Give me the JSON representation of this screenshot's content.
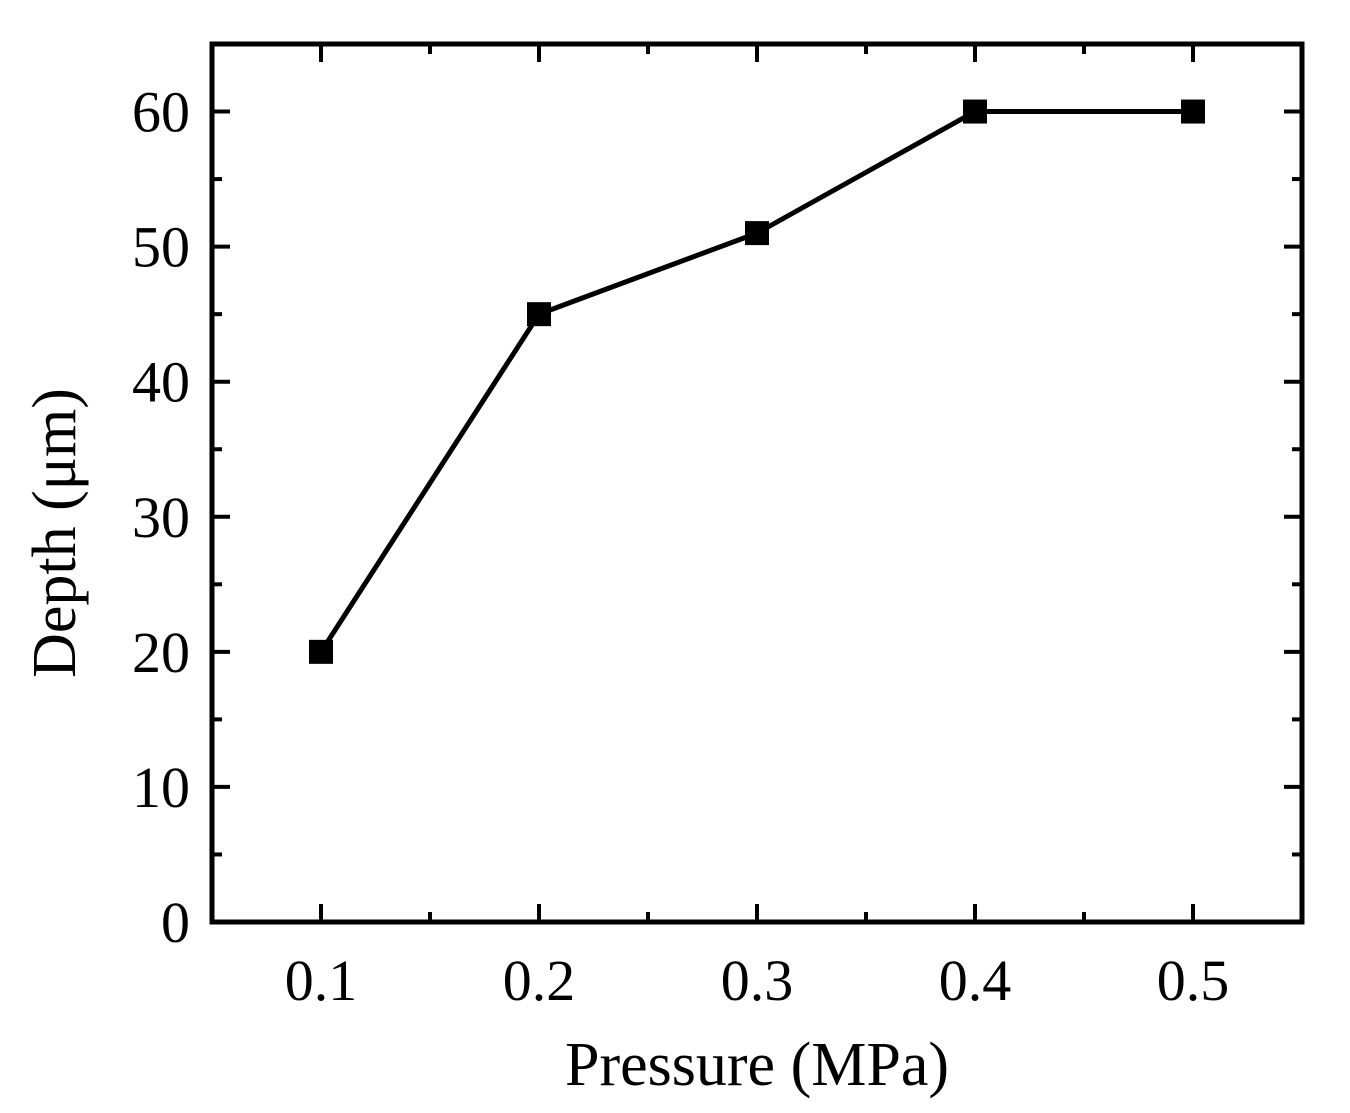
{
  "chart_data": {
    "type": "line",
    "title": "",
    "xlabel": "Pressure (MPa)",
    "ylabel": "Depth (μm)",
    "x": [
      0.1,
      0.2,
      0.3,
      0.4,
      0.5
    ],
    "series": [
      {
        "name": "Depth",
        "values": [
          20,
          45,
          51,
          60,
          60
        ],
        "marker": "square",
        "color": "#000000"
      }
    ],
    "xlim": [
      0.05,
      0.55
    ],
    "ylim": [
      0,
      65
    ],
    "xticks": [
      0.1,
      0.2,
      0.3,
      0.4,
      0.5
    ],
    "xtick_labels": [
      "0.1",
      "0.2",
      "0.3",
      "0.4",
      "0.5"
    ],
    "xticks_minor": [
      0.15,
      0.25,
      0.35,
      0.45
    ],
    "yticks": [
      0,
      10,
      20,
      30,
      40,
      50,
      60
    ],
    "ytick_labels": [
      "0",
      "10",
      "20",
      "30",
      "40",
      "50",
      "60"
    ],
    "yticks_minor": [
      5,
      15,
      25,
      35,
      45,
      55
    ],
    "grid": false,
    "legend": "none"
  }
}
